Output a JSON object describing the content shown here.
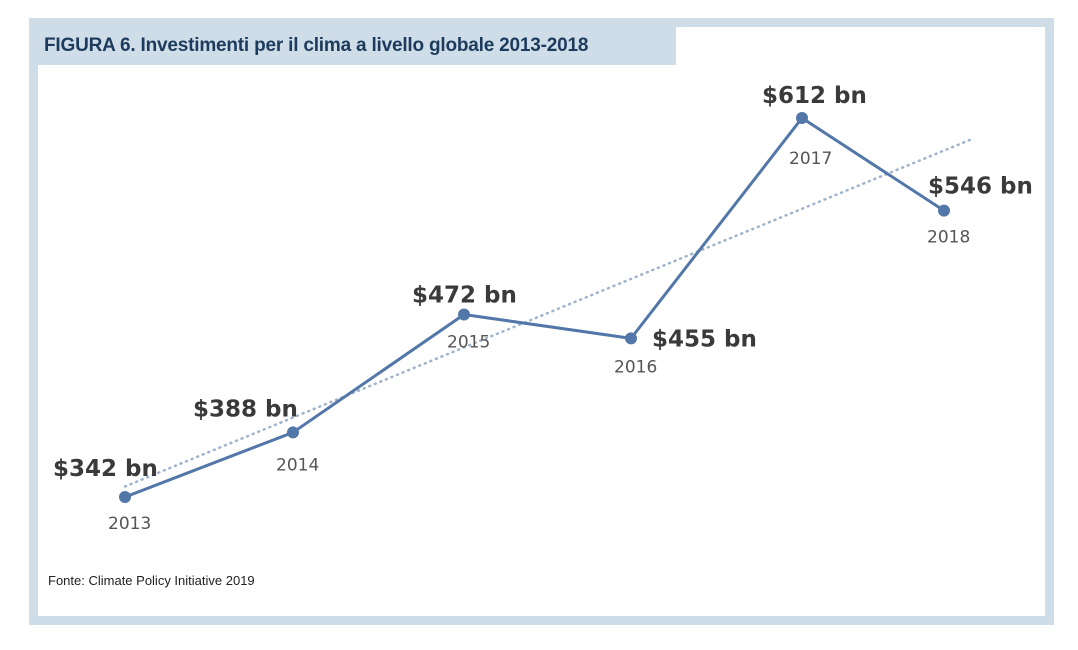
{
  "title": "FIGURA 6. Investimenti per il clima a livello globale 2013-2018",
  "source": "Fonte: Climate Policy Initiative 2019",
  "colors": {
    "frame": "#cfdde8",
    "line": "#5277a8",
    "title": "#1d3b5c"
  },
  "chart_data": {
    "type": "line",
    "x": [
      "2013",
      "2014",
      "2015",
      "2016",
      "2017",
      "2018"
    ],
    "series": [
      {
        "values": [
          342,
          388,
          472,
          455,
          612,
          546
        ],
        "data_labels": [
          "$342 bn",
          "$388 bn",
          "$472 bn",
          "$455 bn",
          "$612 bn",
          "$546 bn"
        ]
      }
    ],
    "trendline": {
      "style": "dotted",
      "type": "linear"
    },
    "title": "FIGURA 6. Investimenti per il clima a livello globale 2013-2018",
    "xlabel": "",
    "ylabel": "",
    "grid": false,
    "unit": "$ bn"
  }
}
